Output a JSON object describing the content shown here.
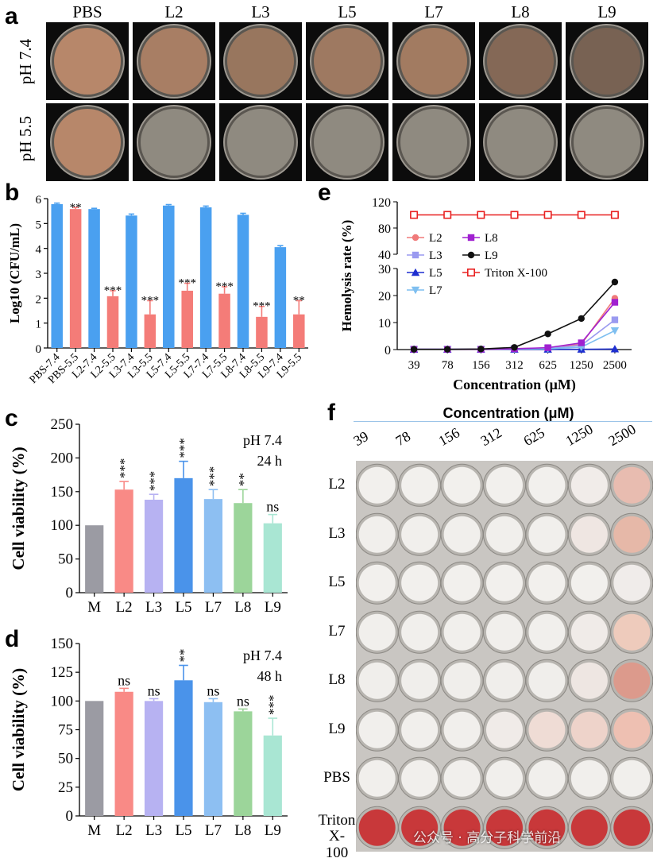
{
  "panels": {
    "a": "a",
    "b": "b",
    "c": "c",
    "d": "d",
    "e": "e",
    "f": "f"
  },
  "panel_a": {
    "columns": [
      "PBS",
      "L2",
      "L3",
      "L5",
      "L7",
      "L8",
      "L9"
    ],
    "rows": [
      "pH 7.4",
      "pH 5.5"
    ],
    "colors": {
      "growth": "#b7876a",
      "clear": "#8f8a80"
    }
  },
  "chart_data": [
    {
      "panel": "b",
      "type": "bar",
      "ylabel": "Log10 (CFU/mL)",
      "ylim": [
        0,
        6
      ],
      "yticks": [
        0,
        1,
        2,
        3,
        4,
        5,
        6
      ],
      "categories": [
        "PBS-7.4",
        "PBS-5.5",
        "L2-7.4",
        "L2-5.5",
        "L3-7.4",
        "L3-5.5",
        "L5-7.4",
        "L5-5.5",
        "L7-7.4",
        "L7-5.5",
        "L8-7.4",
        "L8-5.5",
        "L9-7.4",
        "L9-5.5"
      ],
      "values": [
        5.78,
        5.58,
        5.58,
        2.08,
        5.32,
        1.35,
        5.72,
        2.3,
        5.65,
        2.18,
        5.35,
        1.25,
        4.05,
        1.35
      ],
      "errors": [
        0.04,
        0.06,
        0.03,
        0.22,
        0.06,
        0.55,
        0.04,
        0.3,
        0.05,
        0.28,
        0.06,
        0.42,
        0.06,
        0.55
      ],
      "significance": [
        "",
        "**",
        "",
        "***",
        "",
        "***",
        "",
        "***",
        "",
        "***",
        "",
        "***",
        "",
        "**"
      ],
      "colors": [
        "#4aa0f0",
        "#f47c78"
      ]
    },
    {
      "panel": "c",
      "type": "bar",
      "ylabel": "Cell viability (%)",
      "ylim": [
        0,
        250
      ],
      "yticks": [
        0,
        50,
        100,
        150,
        200,
        250
      ],
      "categories": [
        "M",
        "L2",
        "L3",
        "L5",
        "L7",
        "L8",
        "L9"
      ],
      "values": [
        100,
        153,
        138,
        170,
        139,
        133,
        103
      ],
      "errors": [
        0,
        12,
        8,
        25,
        14,
        20,
        13
      ],
      "significance": [
        "",
        "***",
        "***",
        "***",
        "***",
        "**",
        "ns"
      ],
      "annotation": [
        "pH 7.4",
        "24 h"
      ],
      "colors": [
        "#9b9ba3",
        "#f98a86",
        "#b7b2f2",
        "#4a93ea",
        "#8dbff2",
        "#9cd59a",
        "#a9e6d3"
      ]
    },
    {
      "panel": "d",
      "type": "bar",
      "ylabel": "Cell viability (%)",
      "ylim": [
        0,
        150
      ],
      "yticks": [
        0,
        25,
        50,
        75,
        100,
        125,
        150
      ],
      "categories": [
        "M",
        "L2",
        "L3",
        "L5",
        "L7",
        "L8",
        "L9"
      ],
      "values": [
        100,
        108,
        100,
        118,
        99,
        91,
        70
      ],
      "errors": [
        0,
        3,
        2,
        13,
        3,
        2,
        15
      ],
      "significance": [
        "",
        "ns",
        "ns",
        "**",
        "ns",
        "ns",
        "***"
      ],
      "annotation": [
        "pH 7.4",
        "48 h"
      ],
      "colors": [
        "#9b9ba3",
        "#f98a86",
        "#b7b2f2",
        "#4a93ea",
        "#8dbff2",
        "#9cd59a",
        "#a9e6d3"
      ]
    },
    {
      "panel": "e",
      "type": "line",
      "xlabel": "Concentration (μM)",
      "ylabel": "Hemolysis rate (%)",
      "x": [
        "39",
        "78",
        "156",
        "312",
        "625",
        "1250",
        "2500"
      ],
      "yticks_lower": [
        0,
        10,
        20,
        30
      ],
      "yticks_upper": [
        40,
        80,
        120
      ],
      "ylim_lower": [
        0,
        30
      ],
      "ylim_upper": [
        40,
        120
      ],
      "series": [
        {
          "name": "L2",
          "values": [
            0.1,
            0.1,
            0.1,
            0.3,
            0.6,
            2.0,
            19.0
          ],
          "color": "#f07a7a",
          "marker": "circle"
        },
        {
          "name": "L3",
          "values": [
            0.1,
            0.1,
            0.1,
            0.2,
            0.4,
            1.6,
            11.0
          ],
          "color": "#9a9af0",
          "marker": "square"
        },
        {
          "name": "L5",
          "values": [
            0.1,
            0.1,
            0.1,
            0.1,
            0.1,
            0.1,
            0.2
          ],
          "color": "#1e2fd0",
          "marker": "triangle"
        },
        {
          "name": "L7",
          "values": [
            0.1,
            0.1,
            0.1,
            0.2,
            0.3,
            0.9,
            7.0
          ],
          "color": "#7fbff0",
          "marker": "triangle-down"
        },
        {
          "name": "L8",
          "values": [
            0.1,
            0.1,
            0.1,
            0.3,
            0.7,
            2.5,
            17.5
          ],
          "color": "#a020d0",
          "marker": "square"
        },
        {
          "name": "L9",
          "values": [
            0.1,
            0.1,
            0.2,
            0.8,
            5.8,
            11.5,
            25.0
          ],
          "color": "#111111",
          "marker": "circle"
        },
        {
          "name": "Triton X-100",
          "values": [
            100,
            100,
            100,
            100,
            100,
            100,
            100
          ],
          "color": "#e82020",
          "marker": "open-square"
        }
      ]
    }
  ],
  "panel_f": {
    "title": "Concentration (μM)",
    "columns": [
      "39",
      "78",
      "156",
      "312",
      "625",
      "1250",
      "2500"
    ],
    "rows": [
      {
        "label": "L2",
        "tints": [
          "#f2f0ed",
          "#f2f0ed",
          "#f2f0ed",
          "#f2f0ed",
          "#f2f0ed",
          "#f1ece9",
          "#e8bcb0"
        ]
      },
      {
        "label": "L3",
        "tints": [
          "#f1efec",
          "#f1efec",
          "#f1efec",
          "#f1efec",
          "#f1efec",
          "#efe6e2",
          "#e6b8a8"
        ]
      },
      {
        "label": "L5",
        "tints": [
          "#f2f0ed",
          "#f2f0ed",
          "#f2f0ed",
          "#f2f0ed",
          "#f2f0ed",
          "#f2f0ed",
          "#f0ecea"
        ]
      },
      {
        "label": "L7",
        "tints": [
          "#f1efec",
          "#f1efec",
          "#f1efec",
          "#f1efec",
          "#f1efec",
          "#f0ebe8",
          "#eecbbc"
        ]
      },
      {
        "label": "L8",
        "tints": [
          "#f0eeeb",
          "#f0eeeb",
          "#f0eeeb",
          "#f0eeeb",
          "#f0eeeb",
          "#eee6e2",
          "#dc9a8c"
        ]
      },
      {
        "label": "L9",
        "tints": [
          "#f1efec",
          "#f1efec",
          "#f1efec",
          "#f0ebe8",
          "#efdcd5",
          "#eed3ca",
          "#eec0b2"
        ]
      },
      {
        "label": "PBS",
        "tints": [
          "#f1efec",
          "#f1efec",
          "#f1efec",
          "#f1efec",
          "#f1efec",
          "#f1efec",
          "#f1efec"
        ]
      },
      {
        "label": "Triton X-100",
        "tints": [
          "#c8383a",
          "#c8383a",
          "#c8383a",
          "#c8383a",
          "#c8383a",
          "#c8383a",
          "#c8383a"
        ]
      }
    ],
    "watermark": "公众号 · 高分子科学前沿"
  }
}
